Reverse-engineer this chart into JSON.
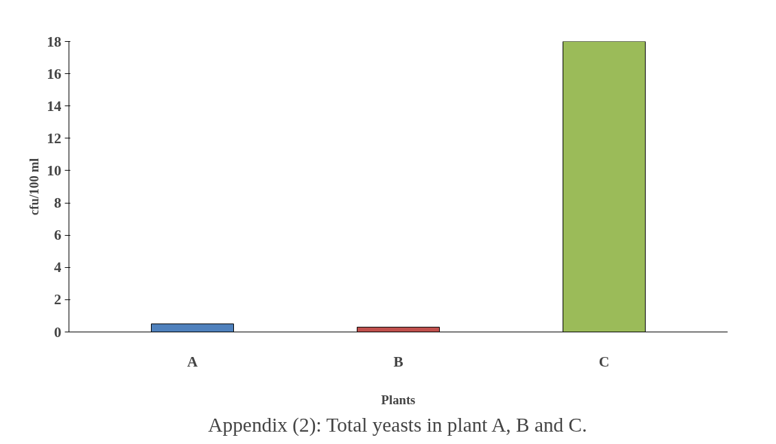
{
  "chart_data": {
    "type": "bar",
    "xlabel": "Plants",
    "ylabel": "cfu/100 ml",
    "categories": [
      "A",
      "B",
      "C"
    ],
    "values": [
      0.5,
      0.3,
      18
    ],
    "colors": [
      "#4f81bd",
      "#c0504d",
      "#9bbb59"
    ],
    "ylim": [
      0,
      18
    ],
    "yticks": [
      0,
      2,
      4,
      6,
      8,
      10,
      12,
      14,
      16,
      18
    ],
    "annotations": [
      "Appendix (2): Total yeasts in plant A, B and C."
    ]
  }
}
